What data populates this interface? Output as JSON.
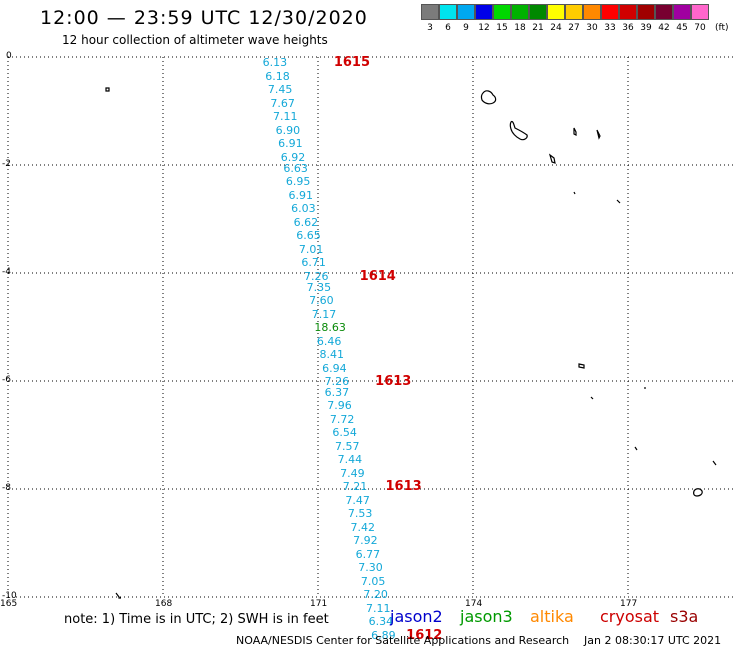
{
  "header": {
    "title": "12:00 — 23:59 UTC 12/30/2020",
    "subtitle": "12 hour collection of altimeter wave heights"
  },
  "legend": {
    "unit": "(ft)",
    "items": [
      {
        "label": "3",
        "color": "#7b7b7b"
      },
      {
        "label": "6",
        "color": "#00e4ee"
      },
      {
        "label": "9",
        "color": "#00a8f0"
      },
      {
        "label": "12",
        "color": "#0000e8"
      },
      {
        "label": "15",
        "color": "#00d800"
      },
      {
        "label": "18",
        "color": "#00b200"
      },
      {
        "label": "21",
        "color": "#008800"
      },
      {
        "label": "24",
        "color": "#ffff00"
      },
      {
        "label": "27",
        "color": "#ffcc00"
      },
      {
        "label": "30",
        "color": "#ff8800"
      },
      {
        "label": "33",
        "color": "#ff0000"
      },
      {
        "label": "36",
        "color": "#d00000"
      },
      {
        "label": "39",
        "color": "#a00000"
      },
      {
        "label": "42",
        "color": "#780030"
      },
      {
        "label": "45",
        "color": "#a000a0"
      },
      {
        "label": "70",
        "color": "#ff66cc"
      }
    ]
  },
  "axes": {
    "y_ticks": [
      "0",
      "-2",
      "-4",
      "-6",
      "-8",
      "-10"
    ],
    "x_ticks": [
      "165",
      "168",
      "171",
      "174",
      "177"
    ]
  },
  "track": {
    "point_color": "#14a8d8",
    "highlight_color": "#0a8a0a",
    "points": [
      {
        "value": "6.13",
        "lon": 170.2,
        "lat": -0.1
      },
      {
        "value": "6.18",
        "lon": 170.25,
        "lat": -0.35
      },
      {
        "value": "7.45",
        "lon": 170.3,
        "lat": -0.6
      },
      {
        "value": "7.67",
        "lon": 170.35,
        "lat": -0.85
      },
      {
        "value": "7.11",
        "lon": 170.4,
        "lat": -1.1
      },
      {
        "value": "6.90",
        "lon": 170.45,
        "lat": -1.35
      },
      {
        "value": "6.91",
        "lon": 170.5,
        "lat": -1.6
      },
      {
        "value": "6.92",
        "lon": 170.55,
        "lat": -1.85
      },
      {
        "value": "6.63",
        "lon": 170.6,
        "lat": -2.05
      },
      {
        "value": "6.95",
        "lon": 170.65,
        "lat": -2.3
      },
      {
        "value": "6.91",
        "lon": 170.7,
        "lat": -2.55
      },
      {
        "value": "6.03",
        "lon": 170.75,
        "lat": -2.8
      },
      {
        "value": "6.62",
        "lon": 170.8,
        "lat": -3.05
      },
      {
        "value": "6.65",
        "lon": 170.85,
        "lat": -3.3
      },
      {
        "value": "7.01",
        "lon": 170.9,
        "lat": -3.55
      },
      {
        "value": "6.71",
        "lon": 170.95,
        "lat": -3.8
      },
      {
        "value": "7.26",
        "lon": 171.0,
        "lat": -4.05
      },
      {
        "value": "7.35",
        "lon": 171.05,
        "lat": -4.25
      },
      {
        "value": "7.60",
        "lon": 171.1,
        "lat": -4.5
      },
      {
        "value": "7.17",
        "lon": 171.15,
        "lat": -4.75
      },
      {
        "value": "18.63",
        "lon": 171.2,
        "lat": -5.0
      },
      {
        "value": "6.46",
        "lon": 171.25,
        "lat": -5.25
      },
      {
        "value": "8.41",
        "lon": 171.3,
        "lat": -5.5
      },
      {
        "value": "6.94",
        "lon": 171.35,
        "lat": -5.75
      },
      {
        "value": "7.26",
        "lon": 171.4,
        "lat": -6.0
      },
      {
        "value": "6.37",
        "lon": 171.4,
        "lat": -6.2
      },
      {
        "value": "7.96",
        "lon": 171.45,
        "lat": -6.45
      },
      {
        "value": "7.72",
        "lon": 171.5,
        "lat": -6.7
      },
      {
        "value": "6.54",
        "lon": 171.55,
        "lat": -6.95
      },
      {
        "value": "7.57",
        "lon": 171.6,
        "lat": -7.2
      },
      {
        "value": "7.44",
        "lon": 171.65,
        "lat": -7.45
      },
      {
        "value": "7.49",
        "lon": 171.7,
        "lat": -7.7
      },
      {
        "value": "7.21",
        "lon": 171.75,
        "lat": -7.95
      },
      {
        "value": "7.47",
        "lon": 171.8,
        "lat": -8.2
      },
      {
        "value": "7.53",
        "lon": 171.85,
        "lat": -8.45
      },
      {
        "value": "7.42",
        "lon": 171.9,
        "lat": -8.7
      },
      {
        "value": "7.92",
        "lon": 171.95,
        "lat": -8.95
      },
      {
        "value": "6.77",
        "lon": 172.0,
        "lat": -9.2
      },
      {
        "value": "7.30",
        "lon": 172.05,
        "lat": -9.45
      },
      {
        "value": "7.05",
        "lon": 172.1,
        "lat": -9.7
      },
      {
        "value": "7.20",
        "lon": 172.15,
        "lat": -9.95
      },
      {
        "value": "7.11",
        "lon": 172.2,
        "lat": -10.2
      },
      {
        "value": "6.34",
        "lon": 172.25,
        "lat": -10.45
      },
      {
        "value": "6.89",
        "lon": 172.3,
        "lat": -10.7
      }
    ],
    "pass_labels": [
      {
        "value": "1615",
        "lon": 171.5,
        "lat": -0.1
      },
      {
        "value": "1614",
        "lon": 172.0,
        "lat": -4.05
      },
      {
        "value": "1613",
        "lon": 172.3,
        "lat": -6.0
      },
      {
        "value": "1613",
        "lon": 172.5,
        "lat": -7.95
      },
      {
        "value": "1612",
        "lon": 172.9,
        "lat": -10.7
      }
    ]
  },
  "footer": {
    "note": "note:  1) Time is in UTC;  2) SWH is in feet",
    "satellites": [
      {
        "name": "jason2",
        "color": "#0000cc"
      },
      {
        "name": "jason3",
        "color": "#009900"
      },
      {
        "name": "altika",
        "color": "#ff8800"
      },
      {
        "name": "cryosat",
        "color": "#cc0000"
      },
      {
        "name": "s3a",
        "color": "#990000"
      }
    ],
    "credit": "NOAA/NESDIS Center for Satellite Applications and Research",
    "timestamp": "Jan  2 08:30:17 UTC 2021"
  }
}
